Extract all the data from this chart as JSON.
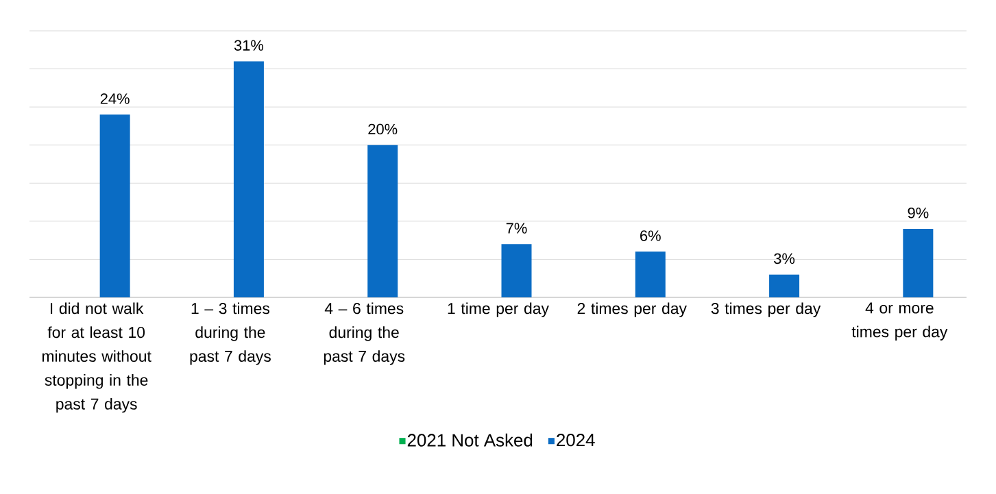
{
  "chart_data": {
    "type": "bar",
    "categories": [
      "I did not walk for at least 10 minutes without stopping in the past 7 days",
      "1 – 3 times during the past 7 days",
      "4 – 6 times during the past 7 days",
      "1 time per day",
      "2 times per day",
      "3 times per day",
      "4 or more times per day"
    ],
    "series": [
      {
        "name": "2021 Not Asked",
        "color": "#00b050",
        "values": [
          null,
          null,
          null,
          null,
          null,
          null,
          null
        ]
      },
      {
        "name": "2024",
        "color": "#0a6cc4",
        "values": [
          24,
          31,
          20,
          7,
          6,
          3,
          9
        ],
        "value_labels": [
          "24%",
          "31%",
          "20%",
          "7%",
          "6%",
          "3%",
          "9%"
        ]
      }
    ],
    "ylim": [
      0,
      35
    ],
    "yticks": [
      0,
      5,
      10,
      15,
      20,
      25,
      30,
      35
    ],
    "tick_labels": "x",
    "grid": "y",
    "legend": "bottom"
  }
}
